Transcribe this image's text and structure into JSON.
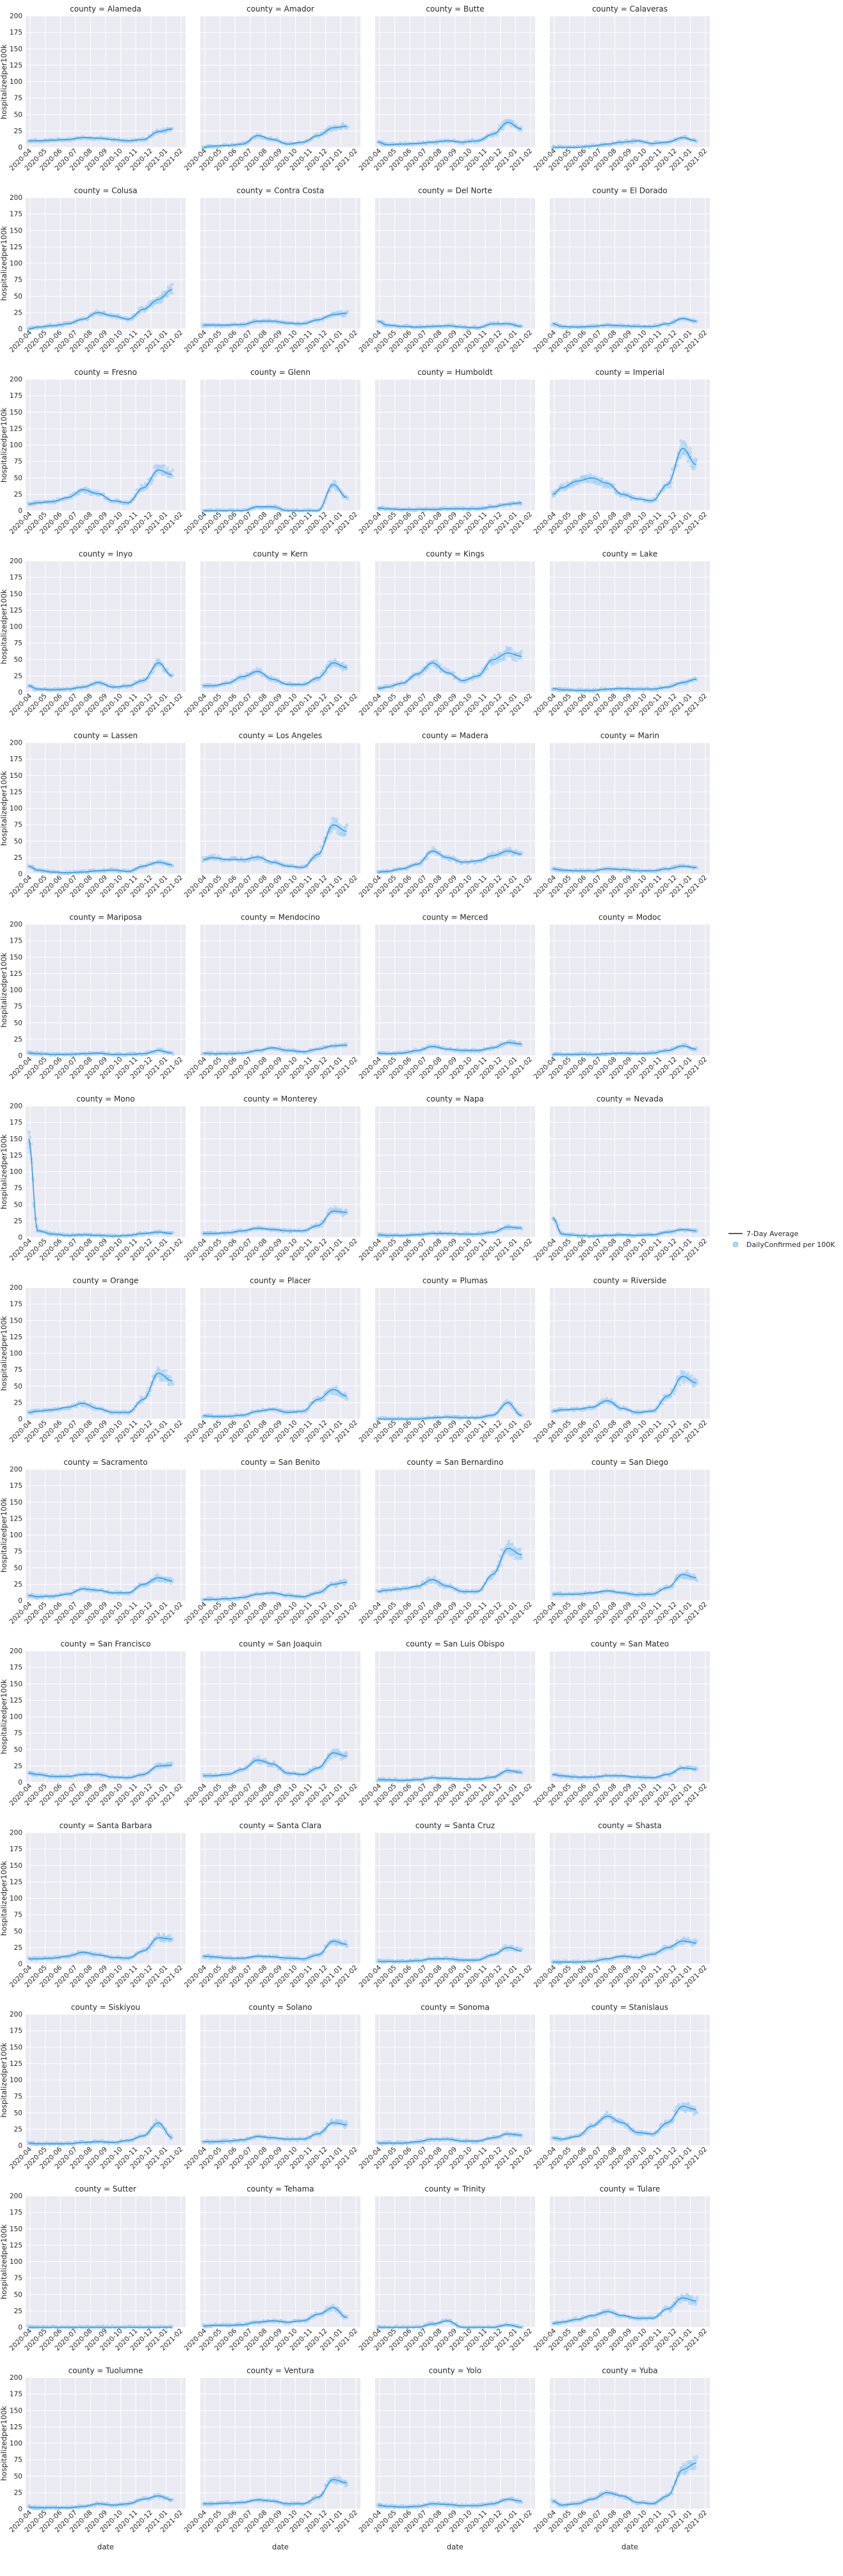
{
  "chart_data": {
    "type": "line",
    "facet_label": "county",
    "xlabel": "date",
    "ylabel": "hospitalizedper100k",
    "ylim": [
      0,
      200
    ],
    "yticks": [
      0,
      25,
      50,
      75,
      100,
      125,
      150,
      175,
      200
    ],
    "xticks": [
      "2020-04",
      "2020-05",
      "2020-06",
      "2020-07",
      "2020-08",
      "2020-09",
      "2020-10",
      "2020-11",
      "2020-12",
      "2021-01",
      "2021-02"
    ],
    "grid": true,
    "legend": {
      "position": "right",
      "entries": [
        {
          "label": "7-Day Average",
          "kind": "line",
          "color": "#262626"
        },
        {
          "label": "DailyConfirmed per 100K",
          "kind": "marker",
          "color": "#3a9bea"
        }
      ]
    },
    "colors": {
      "series": "#3a9bea",
      "band": "#9ccff5",
      "points": "#b8dcf7"
    },
    "x_months": [
      3.9,
      4.5,
      5.5,
      6.5,
      7.5,
      8.5,
      9.5,
      10.5,
      11.5,
      12.5,
      13.4
    ],
    "series_note": "7-day average hospitalized per 100K, sampled at month midpoints Apr 2020 - Feb 2021",
    "panels": [
      {
        "county": "Alameda",
        "values": [
          10,
          10,
          11,
          12,
          15,
          14,
          12,
          10,
          12,
          24,
          28
        ]
      },
      {
        "county": "Amador",
        "values": [
          0,
          2,
          3,
          5,
          18,
          12,
          5,
          8,
          18,
          30,
          32
        ]
      },
      {
        "county": "Butte",
        "values": [
          8,
          4,
          5,
          6,
          8,
          10,
          8,
          10,
          20,
          38,
          28
        ]
      },
      {
        "county": "Calaveras",
        "values": [
          0,
          0,
          0,
          2,
          5,
          8,
          10,
          6,
          8,
          15,
          10
        ]
      },
      {
        "county": "Colusa",
        "values": [
          0,
          3,
          5,
          8,
          15,
          25,
          20,
          15,
          30,
          45,
          60
        ]
      },
      {
        "county": "Contra Costa",
        "values": [
          6,
          6,
          6,
          7,
          12,
          12,
          9,
          8,
          14,
          22,
          24
        ]
      },
      {
        "county": "Del Norte",
        "values": [
          12,
          6,
          4,
          3,
          4,
          5,
          3,
          2,
          8,
          8,
          4
        ]
      },
      {
        "county": "El Dorado",
        "values": [
          8,
          4,
          3,
          4,
          6,
          5,
          4,
          4,
          8,
          16,
          12
        ]
      },
      {
        "county": "Fresno",
        "values": [
          10,
          12,
          14,
          20,
          32,
          26,
          15,
          12,
          35,
          62,
          55
        ]
      },
      {
        "county": "Glenn",
        "values": [
          0,
          0,
          0,
          0,
          6,
          6,
          0,
          0,
          0,
          40,
          20
        ]
      },
      {
        "county": "Humboldt",
        "values": [
          4,
          3,
          2,
          2,
          2,
          3,
          3,
          3,
          6,
          10,
          12
        ]
      },
      {
        "county": "Imperial",
        "values": [
          25,
          35,
          45,
          50,
          42,
          25,
          18,
          15,
          40,
          95,
          70
        ]
      },
      {
        "county": "Inyo",
        "values": [
          10,
          5,
          4,
          5,
          8,
          15,
          8,
          10,
          18,
          45,
          25
        ]
      },
      {
        "county": "Kern",
        "values": [
          10,
          10,
          14,
          24,
          32,
          20,
          12,
          12,
          22,
          45,
          38
        ]
      },
      {
        "county": "Kings",
        "values": [
          6,
          8,
          14,
          28,
          45,
          30,
          18,
          25,
          50,
          60,
          55
        ]
      },
      {
        "county": "Lake",
        "values": [
          6,
          4,
          3,
          3,
          5,
          6,
          5,
          5,
          8,
          15,
          20
        ]
      },
      {
        "county": "Lassen",
        "values": [
          12,
          6,
          3,
          2,
          3,
          5,
          6,
          4,
          12,
          18,
          14
        ]
      },
      {
        "county": "Los Angeles",
        "values": [
          22,
          25,
          22,
          22,
          26,
          18,
          12,
          10,
          30,
          75,
          65
        ]
      },
      {
        "county": "Madera",
        "values": [
          3,
          4,
          8,
          15,
          35,
          25,
          18,
          20,
          28,
          35,
          30
        ]
      },
      {
        "county": "Marin",
        "values": [
          8,
          6,
          5,
          5,
          8,
          7,
          5,
          5,
          8,
          12,
          10
        ]
      },
      {
        "county": "Mariposa",
        "values": [
          4,
          3,
          2,
          2,
          3,
          4,
          2,
          2,
          3,
          8,
          4
        ]
      },
      {
        "county": "Mendocino",
        "values": [
          4,
          3,
          3,
          4,
          8,
          12,
          8,
          6,
          10,
          15,
          16
        ]
      },
      {
        "county": "Merced",
        "values": [
          4,
          3,
          4,
          8,
          14,
          10,
          8,
          8,
          12,
          20,
          18
        ]
      },
      {
        "county": "Modoc",
        "values": [
          2,
          2,
          2,
          2,
          3,
          4,
          3,
          4,
          8,
          15,
          10
        ]
      },
      {
        "county": "Mono",
        "values": [
          150,
          10,
          5,
          3,
          4,
          3,
          2,
          3,
          6,
          8,
          6
        ]
      },
      {
        "county": "Monterey",
        "values": [
          6,
          6,
          7,
          10,
          14,
          12,
          10,
          10,
          18,
          40,
          38
        ]
      },
      {
        "county": "Napa",
        "values": [
          4,
          3,
          3,
          4,
          6,
          6,
          5,
          5,
          8,
          16,
          14
        ]
      },
      {
        "county": "Nevada",
        "values": [
          30,
          5,
          3,
          2,
          3,
          4,
          3,
          4,
          8,
          12,
          10
        ]
      },
      {
        "county": "Orange",
        "values": [
          10,
          12,
          14,
          18,
          24,
          16,
          10,
          10,
          30,
          70,
          58
        ]
      },
      {
        "county": "Placer",
        "values": [
          5,
          4,
          4,
          6,
          12,
          15,
          10,
          12,
          30,
          45,
          35
        ]
      },
      {
        "course": "",
        "county": "Plumas",
        "values": [
          0,
          0,
          0,
          0,
          2,
          3,
          2,
          2,
          6,
          25,
          5
        ]
      },
      {
        "county": "Riverside",
        "values": [
          12,
          14,
          15,
          18,
          28,
          16,
          10,
          12,
          35,
          65,
          55
        ]
      },
      {
        "county": "Sacramento",
        "values": [
          8,
          6,
          7,
          10,
          18,
          16,
          12,
          12,
          25,
          35,
          30
        ]
      },
      {
        "county": "San Benito",
        "values": [
          2,
          2,
          3,
          5,
          10,
          12,
          8,
          6,
          12,
          25,
          28
        ]
      },
      {
        "county": "San Bernardino",
        "values": [
          14,
          16,
          18,
          22,
          32,
          22,
          14,
          14,
          40,
          80,
          70
        ]
      },
      {
        "county": "San Diego",
        "values": [
          10,
          10,
          10,
          12,
          15,
          12,
          9,
          10,
          20,
          40,
          35
        ]
      },
      {
        "county": "San Francisco",
        "values": [
          14,
          12,
          9,
          9,
          12,
          12,
          8,
          7,
          12,
          25,
          26
        ]
      },
      {
        "county": "San Joaquin",
        "values": [
          10,
          10,
          12,
          20,
          34,
          28,
          14,
          12,
          22,
          45,
          40
        ]
      },
      {
        "county": "San Luis Obispo",
        "values": [
          4,
          4,
          3,
          4,
          7,
          6,
          5,
          5,
          8,
          18,
          15
        ]
      },
      {
        "county": "San Mateo",
        "values": [
          12,
          10,
          8,
          8,
          10,
          10,
          8,
          7,
          12,
          22,
          20
        ]
      },
      {
        "county": "Santa Barbara",
        "values": [
          8,
          8,
          9,
          12,
          18,
          14,
          10,
          9,
          20,
          40,
          38
        ]
      },
      {
        "county": "Santa Clara",
        "values": [
          12,
          11,
          9,
          9,
          12,
          11,
          9,
          8,
          14,
          35,
          30
        ]
      },
      {
        "county": "Santa Cruz",
        "values": [
          4,
          4,
          4,
          5,
          8,
          8,
          6,
          6,
          14,
          25,
          20
        ]
      },
      {
        "county": "Shasta",
        "values": [
          3,
          3,
          3,
          4,
          8,
          12,
          10,
          15,
          25,
          35,
          32
        ]
      },
      {
        "county": "Siskiyou",
        "values": [
          4,
          3,
          3,
          3,
          5,
          6,
          5,
          8,
          15,
          35,
          12
        ]
      },
      {
        "county": "Solano",
        "values": [
          6,
          6,
          7,
          9,
          14,
          12,
          10,
          10,
          18,
          35,
          32
        ]
      },
      {
        "county": "Sonoma",
        "values": [
          4,
          4,
          4,
          6,
          10,
          10,
          7,
          7,
          12,
          18,
          16
        ]
      },
      {
        "county": "Stanislaus",
        "values": [
          12,
          10,
          14,
          30,
          45,
          35,
          20,
          18,
          35,
          60,
          55
        ]
      },
      {
        "county": "Sutter",
        "values": [
          0,
          0,
          0,
          0,
          0,
          0,
          0,
          0,
          0,
          0,
          0
        ]
      },
      {
        "county": "Tehama",
        "values": [
          2,
          3,
          3,
          4,
          8,
          10,
          8,
          10,
          20,
          30,
          15
        ]
      },
      {
        "county": "Trinity",
        "values": [
          0,
          0,
          0,
          0,
          5,
          10,
          0,
          0,
          0,
          4,
          0
        ]
      },
      {
        "county": "Tulare",
        "values": [
          6,
          8,
          12,
          18,
          24,
          18,
          14,
          14,
          28,
          45,
          40
        ]
      },
      {
        "county": "Tuolumne",
        "values": [
          3,
          2,
          2,
          2,
          4,
          8,
          6,
          8,
          15,
          20,
          14
        ]
      },
      {
        "county": "Ventura",
        "values": [
          8,
          8,
          9,
          10,
          14,
          12,
          8,
          8,
          18,
          45,
          40
        ]
      },
      {
        "county": "Yolo",
        "values": [
          6,
          4,
          3,
          4,
          8,
          7,
          5,
          5,
          8,
          15,
          12
        ]
      },
      {
        "county": "Yuba",
        "values": [
          12,
          6,
          8,
          15,
          25,
          20,
          10,
          8,
          20,
          60,
          70
        ]
      }
    ]
  }
}
